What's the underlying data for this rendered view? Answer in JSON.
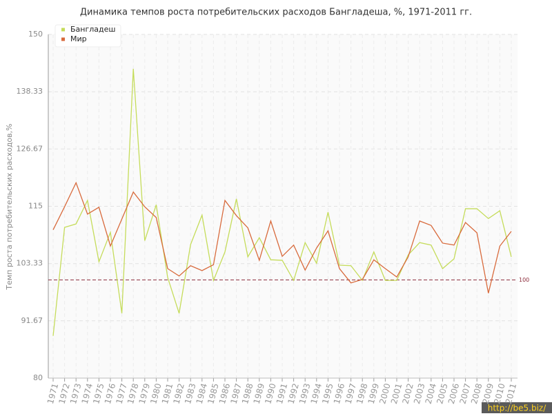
{
  "chart_data": {
    "type": "line",
    "title": "Динамика темпов роста потребительских расходов Бангладеша, %, 1971-2011 гг.",
    "y_label": "Темп роста потребительских расходов,%",
    "categories": [
      "1971",
      "1972",
      "1973",
      "1974",
      "1975",
      "1976",
      "1977",
      "1978",
      "1979",
      "1980",
      "1981",
      "1982",
      "1983",
      "1984",
      "1985",
      "1986",
      "1987",
      "1988",
      "1989",
      "1990",
      "1991",
      "1992",
      "1993",
      "1994",
      "1995",
      "1996",
      "1997",
      "1998",
      "1999",
      "2000",
      "2001",
      "2002",
      "2003",
      "2004",
      "2005",
      "2006",
      "2007",
      "2008",
      "2009",
      "2010",
      "2011"
    ],
    "series": [
      {
        "name": "Бангладеш",
        "color": "#c5dc5a",
        "values": [
          88.6,
          110.7,
          111.4,
          116.2,
          103.7,
          109.7,
          93.2,
          143,
          108,
          115.3,
          100.5,
          93.2,
          107.2,
          113.2,
          99.9,
          105.7,
          116.5,
          104.7,
          108.6,
          104.1,
          104,
          99.9,
          107.6,
          103.4,
          113.8,
          103,
          102.9,
          99.9,
          105.7,
          99.9,
          99.9,
          105.1,
          107.6,
          107.1,
          102.3,
          104.3,
          114.5,
          114.5,
          112.5,
          114.1,
          104.7
        ]
      },
      {
        "name": "Мир",
        "color": "#d86a3c",
        "values": [
          110.2,
          114.9,
          119.8,
          113.4,
          114.8,
          106.9,
          112.4,
          117.9,
          114.9,
          112.7,
          102.3,
          100.8,
          102.9,
          101.9,
          103.1,
          116.2,
          113.1,
          110.6,
          104,
          112,
          104.8,
          107.1,
          102,
          106.5,
          110,
          102.3,
          99.4,
          100.1,
          104.1,
          102.3,
          100.6,
          104.7,
          112,
          111.1,
          107.5,
          107.1,
          111.7,
          109.6,
          97.3,
          106.9,
          109.9
        ]
      }
    ],
    "ylim": [
      80,
      150
    ],
    "yticks": [
      80,
      91.67,
      103.33,
      115,
      126.67,
      138.33,
      150
    ],
    "reference_line": 100,
    "grid": true,
    "legend": "top-left",
    "watermark": "http://be5.biz/"
  }
}
